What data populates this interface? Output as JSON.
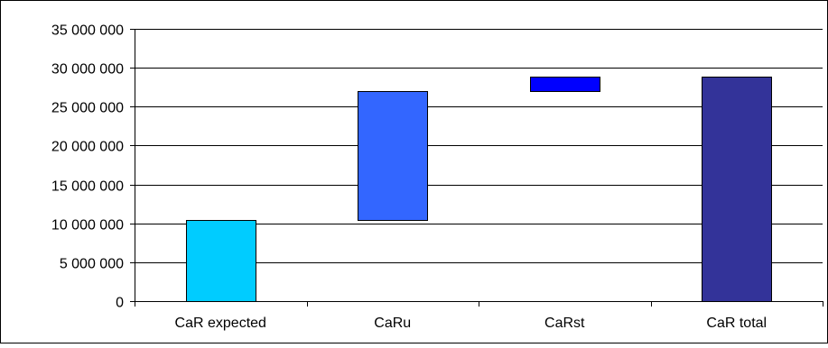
{
  "chart_data": {
    "type": "bar",
    "subtype": "waterfall",
    "categories": [
      "CaR expected",
      "CaRu",
      "CaRst",
      "CaR total"
    ],
    "bars": [
      {
        "category": "CaR expected",
        "start": 0,
        "end": 10400000,
        "color": "#00CCFF"
      },
      {
        "category": "CaRu",
        "start": 10400000,
        "end": 27000000,
        "color": "#3366FF"
      },
      {
        "category": "CaRst",
        "start": 27000000,
        "end": 28900000,
        "color": "#0000FF"
      },
      {
        "category": "CaR total",
        "start": 0,
        "end": 28900000,
        "color": "#333399"
      }
    ],
    "ylim": [
      0,
      35000000
    ],
    "yticks": [
      0,
      5000000,
      10000000,
      15000000,
      20000000,
      25000000,
      30000000,
      35000000
    ],
    "ytick_labels": [
      "0",
      "5 000 000",
      "10 000 000",
      "15 000 000",
      "20 000 000",
      "25 000 000",
      "30 000 000",
      "35 000 000"
    ],
    "grid": true,
    "legend": "none",
    "title": "",
    "xlabel": "",
    "ylabel": ""
  }
}
